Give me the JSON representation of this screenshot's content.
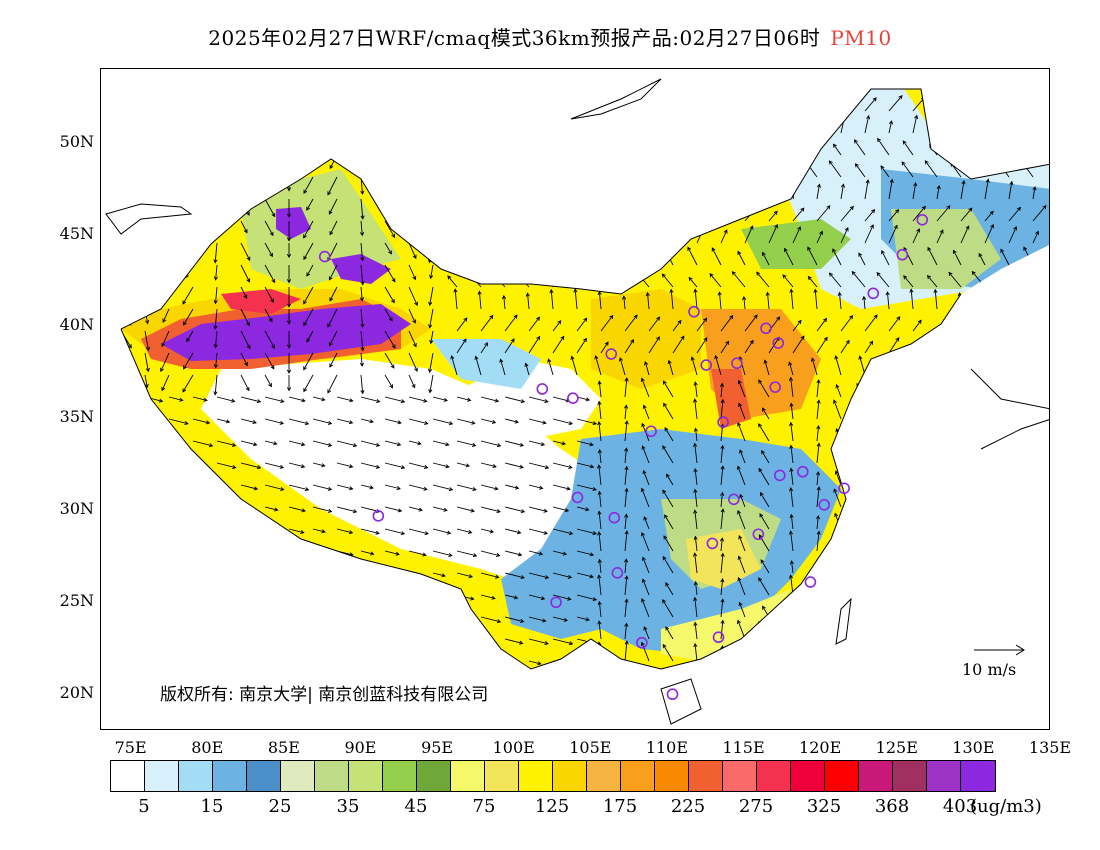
{
  "title": {
    "main": "2025年02月27日WRF/cmaq模式36km预报产品:02月27日06时",
    "variable": "PM10"
  },
  "axes": {
    "lat_labels": [
      "50N",
      "45N",
      "40N",
      "35N",
      "30N",
      "25N",
      "20N"
    ],
    "lon_labels": [
      "75E",
      "80E",
      "85E",
      "90E",
      "95E",
      "100E",
      "105E",
      "110E",
      "115E",
      "120E",
      "125E",
      "130E",
      "135E"
    ]
  },
  "copyright": "版权所有: 南京大学| 南京创蓝科技有限公司",
  "scale": {
    "label": "10 m/s"
  },
  "legend": {
    "colors": [
      "#ffffff",
      "#d7f0fa",
      "#a3dcf5",
      "#6cb3e3",
      "#4a8fc8",
      "#dfeabf",
      "#bedc86",
      "#c6e276",
      "#94cf4c",
      "#6fa838",
      "#f4f86a",
      "#f2e55a",
      "#fff200",
      "#fad600",
      "#f5b342",
      "#f8a01e",
      "#f98a00",
      "#f06030",
      "#fb6a6a",
      "#f4314f",
      "#f0003a",
      "#ff0000",
      "#c81878",
      "#a03060",
      "#9c34c8",
      "#8c28e0"
    ],
    "labels": [
      "5",
      "15",
      "25",
      "35",
      "45",
      "75",
      "125",
      "175",
      "225",
      "275",
      "325",
      "368",
      "403"
    ],
    "unit": "(ug/m3)"
  },
  "stations": [
    {
      "lon": 87.6,
      "lat": 43.8
    },
    {
      "lon": 91.1,
      "lat": 29.7
    },
    {
      "lon": 101.8,
      "lat": 36.6
    },
    {
      "lon": 103.8,
      "lat": 36.1
    },
    {
      "lon": 106.3,
      "lat": 38.5
    },
    {
      "lon": 108.9,
      "lat": 34.3
    },
    {
      "lon": 111.7,
      "lat": 40.8
    },
    {
      "lon": 112.5,
      "lat": 37.9
    },
    {
      "lon": 114.5,
      "lat": 38.0
    },
    {
      "lon": 116.4,
      "lat": 39.9
    },
    {
      "lon": 117.2,
      "lat": 39.1
    },
    {
      "lon": 117.0,
      "lat": 36.7
    },
    {
      "lon": 113.6,
      "lat": 34.8
    },
    {
      "lon": 104.1,
      "lat": 30.7
    },
    {
      "lon": 106.5,
      "lat": 29.6
    },
    {
      "lon": 114.3,
      "lat": 30.6
    },
    {
      "lon": 112.9,
      "lat": 28.2
    },
    {
      "lon": 115.9,
      "lat": 28.7
    },
    {
      "lon": 117.3,
      "lat": 31.9
    },
    {
      "lon": 118.8,
      "lat": 32.1
    },
    {
      "lon": 120.2,
      "lat": 30.3
    },
    {
      "lon": 121.5,
      "lat": 31.2
    },
    {
      "lon": 119.3,
      "lat": 26.1
    },
    {
      "lon": 113.3,
      "lat": 23.1
    },
    {
      "lon": 108.3,
      "lat": 22.8
    },
    {
      "lon": 110.3,
      "lat": 20.0
    },
    {
      "lon": 102.7,
      "lat": 25.0
    },
    {
      "lon": 106.7,
      "lat": 26.6
    },
    {
      "lon": 123.4,
      "lat": 41.8
    },
    {
      "lon": 125.3,
      "lat": 43.9
    },
    {
      "lon": 126.6,
      "lat": 45.8
    }
  ]
}
